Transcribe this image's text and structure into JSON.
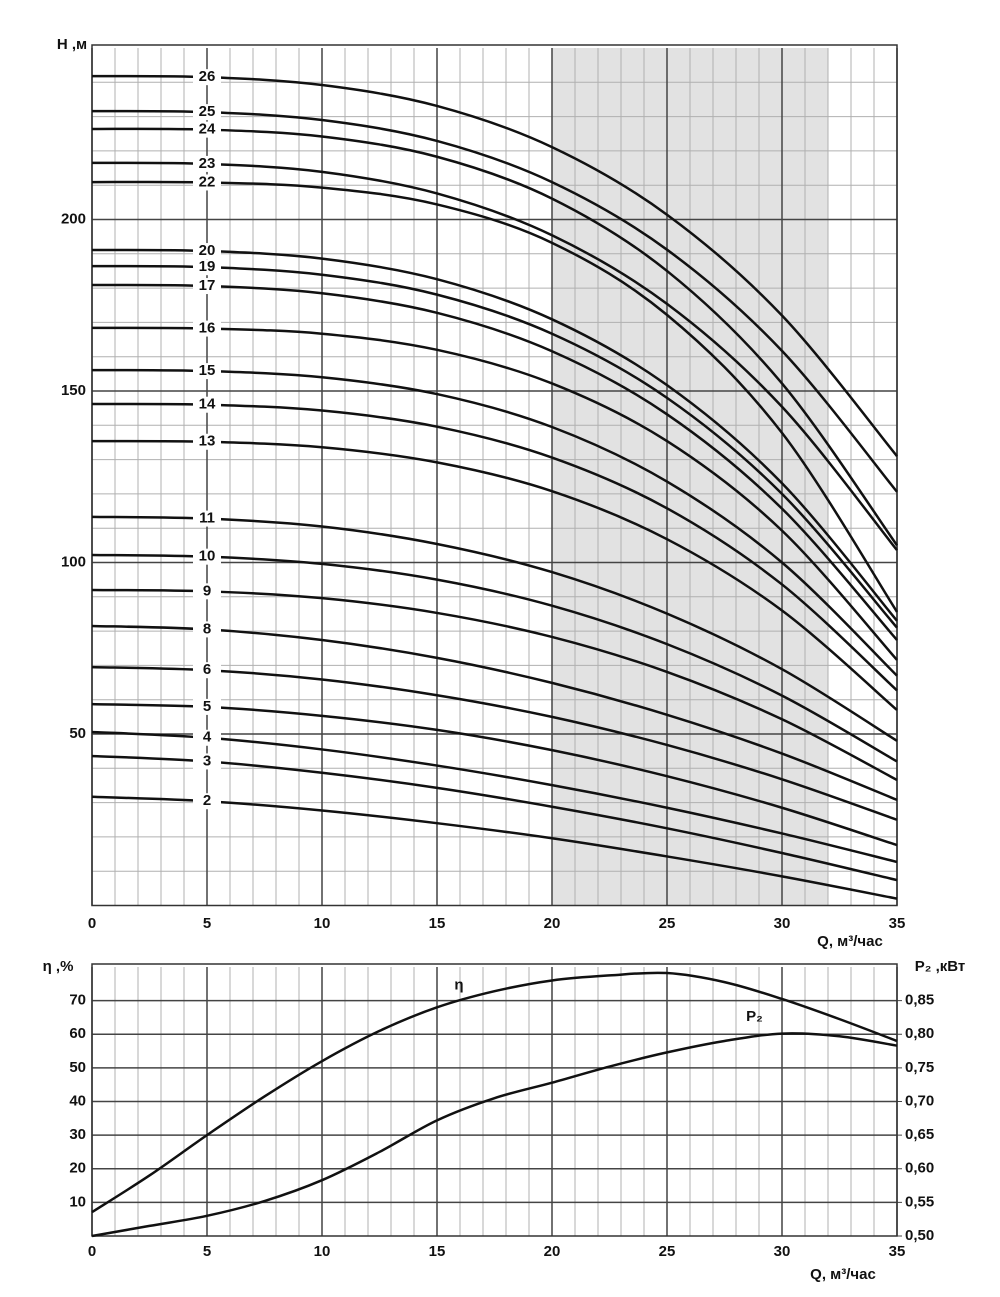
{
  "chart_data": [
    {
      "type": "line",
      "y_label": "Н ,м",
      "x_label": "Q, м³/час",
      "x": [
        0,
        5,
        10,
        15,
        20,
        25,
        30,
        35
      ],
      "xlim": [
        0,
        35
      ],
      "xticks": [
        0,
        5,
        10,
        15,
        20,
        25,
        30,
        35
      ],
      "ylim": [
        0,
        250
      ],
      "yticks": [
        50,
        100,
        150,
        200
      ],
      "grid": true,
      "shaded_x": [
        20,
        32
      ],
      "shade_color": "#e2e2e2",
      "series": [
        {
          "name": "26",
          "color": "#111111",
          "values": [
            241.8,
            241.5,
            239.2,
            233.1,
            221.1,
            201.4,
            172.0,
            131.0
          ]
        },
        {
          "name": "25",
          "color": "#111111",
          "values": [
            231.6,
            231.3,
            229.0,
            222.9,
            210.9,
            191.2,
            161.7,
            120.6
          ]
        },
        {
          "name": "24",
          "color": "#111111",
          "values": [
            226.4,
            226.2,
            224.2,
            218.3,
            206.1,
            185.0,
            152.2,
            105.0
          ]
        },
        {
          "name": "23",
          "color": "#111111",
          "values": [
            216.5,
            216.2,
            213.9,
            207.6,
            195.4,
            175.4,
            145.4,
            103.6
          ]
        },
        {
          "name": "22",
          "color": "#111111",
          "values": [
            210.9,
            210.8,
            209.3,
            204.4,
            193.2,
            172.2,
            137.8,
            85.6
          ]
        },
        {
          "name": "20",
          "color": "#111111",
          "values": [
            191.1,
            190.8,
            188.6,
            182.6,
            170.9,
            151.7,
            123.1,
            83.0
          ]
        },
        {
          "name": "19",
          "color": "#111111",
          "values": [
            186.4,
            186.1,
            183.9,
            178.1,
            166.7,
            148.0,
            120.0,
            81.0
          ]
        },
        {
          "name": "17",
          "color": "#111111",
          "values": [
            180.9,
            180.6,
            178.5,
            172.8,
            161.6,
            143.2,
            115.7,
            77.4
          ]
        },
        {
          "name": "16",
          "color": "#111111",
          "values": [
            168.4,
            168.2,
            166.7,
            162.0,
            152.2,
            135.4,
            109.3,
            71.6
          ]
        },
        {
          "name": "15",
          "color": "#111111",
          "values": [
            156.1,
            155.8,
            154.0,
            149.1,
            139.5,
            123.6,
            100.0,
            67.0
          ]
        },
        {
          "name": "14",
          "color": "#111111",
          "values": [
            146.2,
            146.0,
            144.3,
            139.6,
            130.6,
            115.8,
            93.6,
            62.7
          ]
        },
        {
          "name": "13",
          "color": "#111111",
          "values": [
            135.4,
            135.2,
            133.6,
            129.2,
            120.8,
            106.8,
            86.0,
            57.0
          ]
        },
        {
          "name": "11",
          "color": "#111111",
          "values": [
            113.3,
            112.8,
            110.5,
            105.4,
            97.2,
            85.1,
            68.9,
            48.0
          ]
        },
        {
          "name": "10",
          "color": "#111111",
          "values": [
            102.2,
            101.7,
            99.6,
            95.0,
            87.4,
            76.2,
            61.2,
            42.0
          ]
        },
        {
          "name": "9",
          "color": "#111111",
          "values": [
            92.0,
            91.6,
            89.6,
            85.3,
            78.3,
            68.1,
            54.3,
            36.6
          ]
        },
        {
          "name": "8",
          "color": "#111111",
          "values": [
            81.5,
            80.5,
            77.4,
            72.2,
            64.9,
            55.6,
            44.3,
            30.8
          ]
        },
        {
          "name": "6",
          "color": "#111111",
          "values": [
            69.5,
            68.6,
            65.9,
            61.3,
            55.0,
            46.8,
            36.8,
            25.0
          ]
        },
        {
          "name": "5",
          "color": "#111111",
          "values": [
            58.7,
            57.9,
            55.3,
            51.2,
            45.3,
            37.7,
            28.5,
            17.6
          ]
        },
        {
          "name": "4",
          "color": "#111111",
          "values": [
            50.6,
            48.9,
            45.5,
            40.8,
            35.1,
            28.5,
            21.0,
            12.7
          ]
        },
        {
          "name": "3",
          "color": "#111111",
          "values": [
            43.6,
            42.0,
            38.7,
            34.3,
            28.8,
            22.5,
            15.3,
            7.4
          ]
        },
        {
          "name": "2",
          "color": "#111111",
          "values": [
            31.7,
            30.4,
            27.7,
            24.0,
            19.6,
            14.3,
            8.5,
            2.0
          ]
        }
      ]
    },
    {
      "type": "line",
      "y_label": "η ,%",
      "y2_label": "P₂ ,кВт",
      "x_label": "Q, м³/час",
      "x": [
        0,
        2.5,
        5,
        7.5,
        10,
        12.5,
        15,
        17.5,
        20,
        22.5,
        25,
        27.5,
        30,
        32.5,
        35
      ],
      "xlim": [
        0,
        35
      ],
      "xticks": [
        0,
        5,
        10,
        15,
        20,
        25,
        30,
        35
      ],
      "ylim": [
        0,
        80
      ],
      "yticks": [
        10,
        20,
        30,
        40,
        50,
        60,
        70
      ],
      "y2lim": [
        0.5,
        0.9
      ],
      "y2ticks": [
        {
          "value": 0.5,
          "label": "0,50"
        },
        {
          "value": 0.55,
          "label": "0,55"
        },
        {
          "value": 0.6,
          "label": "0,60"
        },
        {
          "value": 0.65,
          "label": "0,65"
        },
        {
          "value": 0.7,
          "label": "0,70"
        },
        {
          "value": 0.75,
          "label": "0,75"
        },
        {
          "value": 0.8,
          "label": "0,80"
        },
        {
          "value": 0.85,
          "label": "0,85"
        }
      ],
      "grid": true,
      "series": [
        {
          "name": "η",
          "color": "#111111",
          "values": [
            7.1,
            18,
            30,
            41.5,
            52,
            61,
            68,
            72.8,
            76,
            77.5,
            78.2,
            75.5,
            70.5,
            64.5,
            58
          ]
        },
        {
          "name": "P₂",
          "color": "#111111",
          "axis": "y2",
          "values": [
            0.5,
            0.515,
            0.53,
            0.552,
            0.583,
            0.625,
            0.672,
            0.705,
            0.728,
            0.752,
            0.773,
            0.79,
            0.801,
            0.797,
            0.783
          ]
        }
      ]
    }
  ]
}
